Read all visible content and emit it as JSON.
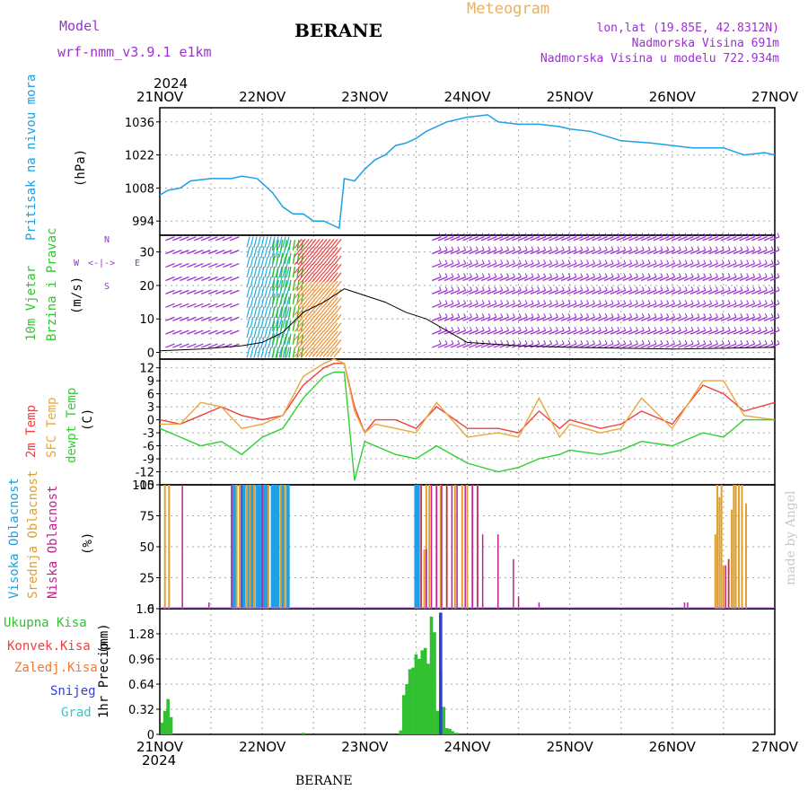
{
  "header": {
    "model_label": "Model",
    "model_name": "wrf-nmm_v3.9.1 e1km",
    "station": "BERANE",
    "title": "Meteogram",
    "lonlat": "lon,lat (19.85E, 42.8312N)",
    "elevation": "Nadmorska Visina 691m",
    "model_elevation": "Nadmorska Visina u modelu 722.934m",
    "year": "2024"
  },
  "footer": {
    "station": "BERANE",
    "made_by": "made by Angel"
  },
  "colors": {
    "pressure": "#1ea0e6",
    "wind_label": "#2ec82e",
    "temp2m": "#f04040",
    "sfc": "#e8a840",
    "dew": "#30d030",
    "cloud_high": "#1ea0e6",
    "cloud_mid": "#e0a030",
    "cloud_low": "#c02090",
    "rain_total": "#30c030",
    "rain_conv": "#f04040",
    "freezing": "#f07830",
    "snow": "#3040d0",
    "hail": "#30c8c8",
    "wind_purple": "#9b30d0",
    "grid": "#aaaaaa"
  },
  "chart_data": [
    {
      "type": "line",
      "name": "pressure",
      "ylabel": "Pritisak na nivou mora",
      "unit": "(hPa)",
      "x_ticks": [
        "21NOV",
        "22NOV",
        "23NOV",
        "24NOV",
        "25NOV",
        "26NOV",
        "27NOV"
      ],
      "ylim": [
        988,
        1042
      ],
      "yticks": [
        994,
        1008,
        1022,
        1036
      ],
      "ytick_labels": [
        "994",
        "1008",
        "1022",
        "1036"
      ],
      "x": [
        0,
        0.08,
        0.2,
        0.3,
        0.5,
        0.7,
        0.8,
        0.95,
        1.0,
        1.1,
        1.2,
        1.3,
        1.4,
        1.5,
        1.6,
        1.7,
        1.75,
        1.8,
        1.9,
        2.0,
        2.1,
        2.2,
        2.3,
        2.4,
        2.5,
        2.6,
        2.8,
        3.0,
        3.1,
        3.2,
        3.3,
        3.5,
        3.7,
        3.9,
        4.0,
        4.2,
        4.5,
        4.8,
        5.0,
        5.2,
        5.5,
        5.7,
        5.9,
        6.0
      ],
      "y": [
        1005,
        1007,
        1008,
        1011,
        1012,
        1012,
        1013,
        1012,
        1010,
        1006,
        1000,
        997,
        997,
        994,
        994,
        992,
        991,
        1012,
        1011,
        1016,
        1020,
        1022,
        1026,
        1027,
        1029,
        1032,
        1036,
        1038,
        1038.5,
        1039,
        1036,
        1035,
        1035,
        1034,
        1033,
        1032,
        1028,
        1027,
        1026,
        1025,
        1025,
        1022,
        1023,
        1022
      ]
    },
    {
      "type": "line",
      "name": "wind",
      "ylabel": [
        "10m Vjetar",
        "Brzina i Pravac"
      ],
      "unit": "(m/s)",
      "compass": [
        "N",
        "W",
        "E",
        "S"
      ],
      "ylim": [
        -2,
        35
      ],
      "yticks": [
        0,
        10,
        20,
        30
      ],
      "ytick_labels": [
        "0",
        "10",
        "20",
        "30"
      ],
      "x": [
        0,
        0.4,
        0.8,
        1.0,
        1.2,
        1.4,
        1.6,
        1.8,
        1.9,
        2.0,
        2.2,
        2.4,
        2.6,
        3.0,
        3.5,
        4.0,
        5.0,
        6.0
      ],
      "y": [
        0.5,
        1,
        2,
        3,
        6,
        12,
        15,
        19,
        18,
        17,
        15,
        12,
        10,
        3,
        2,
        1.5,
        1,
        1.5
      ]
    },
    {
      "type": "line",
      "name": "temperature",
      "ylabel": [
        "2m Temp",
        "SFC Temp",
        "dewpt Temp"
      ],
      "unit": "(C)",
      "ylim": [
        -15,
        14
      ],
      "yticks": [
        -15,
        -12,
        -9,
        -6,
        -3,
        0,
        3,
        6,
        9,
        12
      ],
      "ytick_labels": [
        "-15",
        "-12",
        "-9",
        "-6",
        "-3",
        "0",
        "3",
        "6",
        "9",
        "12"
      ],
      "series": [
        {
          "name": "2m Temp",
          "x": [
            0,
            0.2,
            0.4,
            0.6,
            0.8,
            1.0,
            1.2,
            1.4,
            1.6,
            1.7,
            1.8,
            1.9,
            2.0,
            2.1,
            2.3,
            2.5,
            2.7,
            3.0,
            3.3,
            3.5,
            3.7,
            3.9,
            4.0,
            4.3,
            4.5,
            4.7,
            5.0,
            5.3,
            5.5,
            5.7,
            6.0
          ],
          "y": [
            0,
            -1,
            1,
            3,
            1,
            0,
            1,
            8,
            12,
            13,
            13,
            3,
            -3,
            0,
            0,
            -2,
            3,
            -2,
            -2,
            -3,
            2,
            -2,
            0,
            -2,
            -1,
            2,
            -1,
            8,
            6,
            2,
            4
          ]
        },
        {
          "name": "SFC Temp",
          "x": [
            0,
            0.2,
            0.4,
            0.6,
            0.8,
            1.0,
            1.2,
            1.4,
            1.6,
            1.7,
            1.8,
            1.9,
            2.0,
            2.1,
            2.3,
            2.5,
            2.7,
            3.0,
            3.3,
            3.5,
            3.7,
            3.9,
            4.0,
            4.3,
            4.5,
            4.7,
            5.0,
            5.3,
            5.5,
            5.7,
            6.0
          ],
          "y": [
            -1,
            -1,
            4,
            3,
            -2,
            -1,
            1,
            10,
            13,
            14,
            13,
            2,
            -3,
            -1,
            -2,
            -3,
            4,
            -4,
            -3,
            -4,
            5,
            -4,
            -1,
            -3,
            -2,
            5,
            -2,
            9,
            9,
            1,
            0
          ]
        },
        {
          "name": "dewpt Temp",
          "x": [
            0,
            0.2,
            0.4,
            0.6,
            0.8,
            1.0,
            1.2,
            1.4,
            1.6,
            1.7,
            1.8,
            1.9,
            2.0,
            2.1,
            2.3,
            2.5,
            2.7,
            3.0,
            3.3,
            3.5,
            3.7,
            3.9,
            4.0,
            4.3,
            4.5,
            4.7,
            5.0,
            5.3,
            5.5,
            5.7,
            6.0
          ],
          "y": [
            -2,
            -4,
            -6,
            -5,
            -8,
            -4,
            -2,
            5,
            10,
            11,
            11,
            -14,
            -5,
            -6,
            -8,
            -9,
            -6,
            -10,
            -12,
            -11,
            -9,
            -8,
            -7,
            -8,
            -7,
            -5,
            -6,
            -3,
            -4,
            0,
            0
          ]
        }
      ]
    },
    {
      "type": "bar",
      "name": "clouds",
      "ylabel": [
        "Visoka Oblacnost",
        "Srednja Oblacnost",
        "Niska Oblacnost"
      ],
      "unit": "(%)",
      "ylim": [
        0,
        100
      ],
      "yticks": [
        0,
        25,
        50,
        75,
        100
      ],
      "ytick_labels": [
        "0",
        "25",
        "50",
        "75",
        "100"
      ],
      "series": [
        {
          "name": "Visoka Oblacnost",
          "x": [
            0.72,
            0.74,
            0.8,
            0.82,
            0.86,
            0.9,
            0.95,
            0.97,
            1.0,
            1.02,
            1.05,
            1.1,
            1.12,
            1.15,
            1.2,
            1.25,
            2.5,
            2.52
          ],
          "values": [
            100,
            100,
            100,
            100,
            100,
            100,
            100,
            100,
            100,
            100,
            100,
            100,
            100,
            100,
            100,
            100,
            100,
            100
          ]
        },
        {
          "name": "Srednja Oblacnost",
          "x": [
            0.05,
            0.09,
            0.75,
            0.78,
            0.85,
            0.88,
            0.92,
            1.06,
            1.18,
            1.22,
            2.55,
            2.58,
            2.6,
            2.63,
            2.7,
            2.74,
            2.8,
            2.88,
            2.95,
            3.0,
            3.05,
            3.1,
            5.42,
            5.44,
            5.46,
            5.48,
            5.5,
            5.55,
            5.58,
            5.6,
            5.62,
            5.65,
            5.68,
            5.72
          ],
          "values": [
            100,
            100,
            100,
            100,
            100,
            100,
            100,
            100,
            100,
            100,
            100,
            48,
            100,
            100,
            100,
            100,
            100,
            100,
            100,
            100,
            100,
            100,
            60,
            100,
            90,
            100,
            35,
            40,
            80,
            100,
            100,
            100,
            100,
            85
          ]
        },
        {
          "name": "Niska Oblacnost",
          "x": [
            0.22,
            0.48,
            0.7,
            0.8,
            1.0,
            2.55,
            2.6,
            2.65,
            2.7,
            2.75,
            2.8,
            2.85,
            2.9,
            2.98,
            3.05,
            3.1,
            3.15,
            3.3,
            3.45,
            3.5,
            3.7,
            5.12,
            5.15,
            5.52,
            5.55
          ],
          "values": [
            100,
            5,
            100,
            100,
            100,
            100,
            48,
            100,
            100,
            100,
            100,
            100,
            100,
            100,
            100,
            100,
            60,
            60,
            40,
            10,
            5,
            5,
            5,
            35,
            40
          ]
        }
      ]
    },
    {
      "type": "bar",
      "name": "precipitation",
      "ylabel": "1hr Precip",
      "unit": "(mm)",
      "ylim": [
        0,
        1.6
      ],
      "yticks": [
        0,
        0.32,
        0.64,
        0.96,
        1.28,
        1.6
      ],
      "ytick_labels": [
        "0",
        "0.32",
        "0.64",
        "0.96",
        "1.28",
        "1.6"
      ],
      "x_bottom_year": "2024",
      "legend": [
        "Ukupna Kisa",
        "Konvek.Kisa",
        "Zaledj.Kisa",
        "Snijeg",
        "Grad"
      ],
      "series": [
        {
          "name": "Ukupna Kisa",
          "x": [
            0.02,
            0.05,
            0.08,
            0.11,
            1.4,
            2.35,
            2.38,
            2.41,
            2.44,
            2.47,
            2.5,
            2.53,
            2.56,
            2.59,
            2.62,
            2.65,
            2.68,
            2.71,
            2.74,
            2.77,
            2.8,
            2.83,
            2.86,
            2.9
          ],
          "values": [
            0.15,
            0.3,
            0.45,
            0.22,
            0.02,
            0.05,
            0.5,
            0.64,
            0.83,
            0.85,
            1.02,
            0.96,
            1.07,
            1.1,
            0.9,
            1.5,
            1.3,
            0.3,
            0.8,
            0.35,
            0.08,
            0.07,
            0.04,
            0.02
          ]
        },
        {
          "name": "Snijeg",
          "x": [
            2.74
          ],
          "values": [
            1.55
          ]
        }
      ]
    }
  ]
}
